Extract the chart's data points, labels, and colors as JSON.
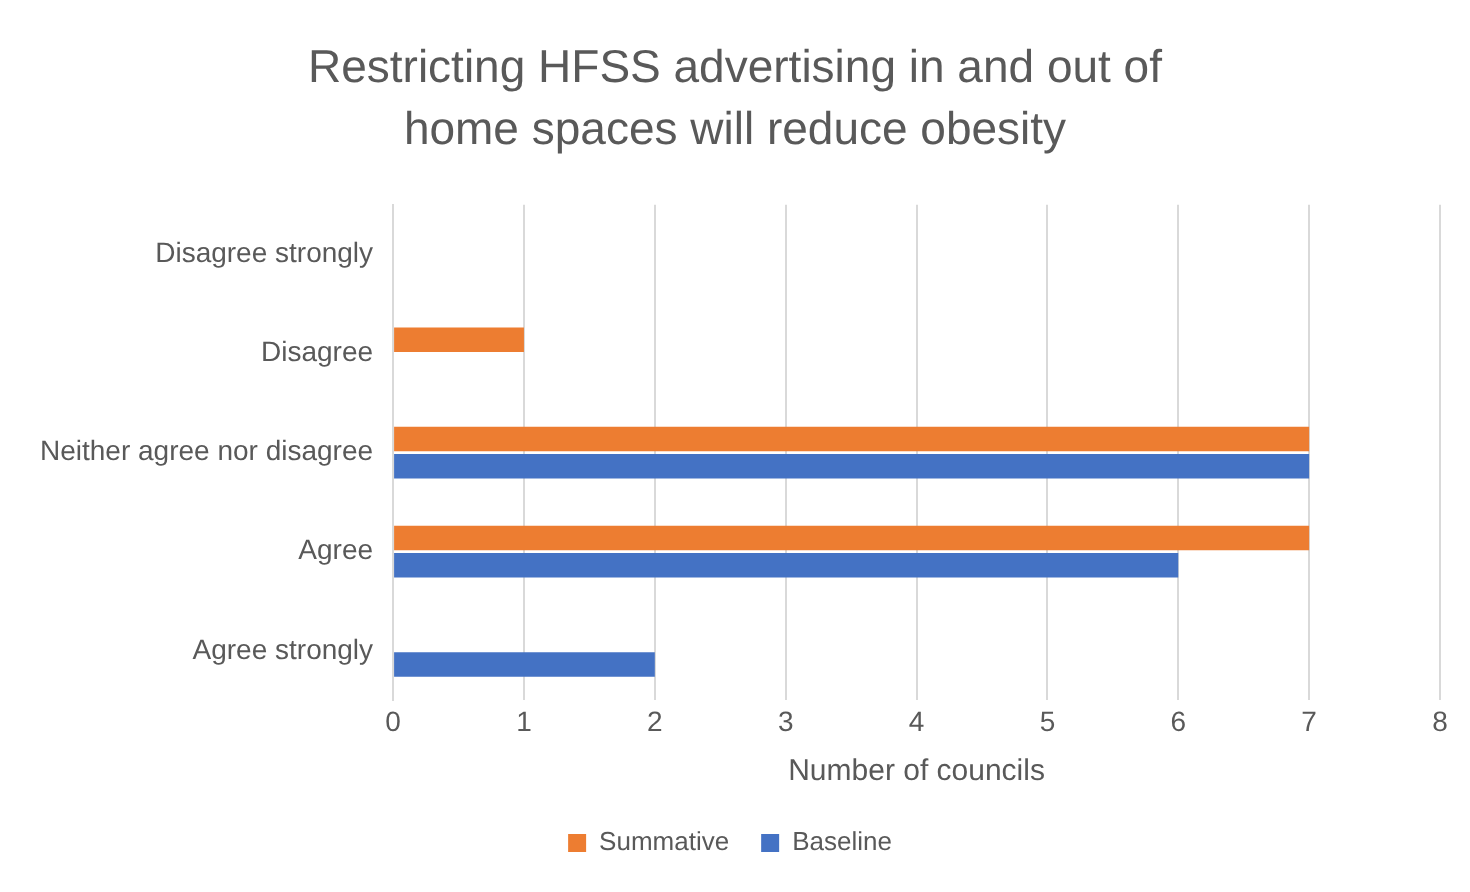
{
  "chart_data": {
    "type": "bar",
    "orientation": "horizontal",
    "title": "Restricting HFSS advertising in and out of home spaces will reduce obesity",
    "xlabel": "Number of councils",
    "categories": [
      "Disagree strongly",
      "Disagree",
      "Neither agree nor disagree",
      "Agree",
      "Agree strongly"
    ],
    "series": [
      {
        "name": "Summative",
        "color": "#ed7d31",
        "values": [
          0,
          1,
          7,
          7,
          0
        ]
      },
      {
        "name": "Baseline",
        "color": "#4472c4",
        "values": [
          0,
          0,
          7,
          6,
          2
        ]
      }
    ],
    "xlim": [
      0,
      8
    ],
    "xticks": [
      0,
      1,
      2,
      3,
      4,
      5,
      6,
      7,
      8
    ],
    "grid": "x",
    "legend": "bottom"
  }
}
